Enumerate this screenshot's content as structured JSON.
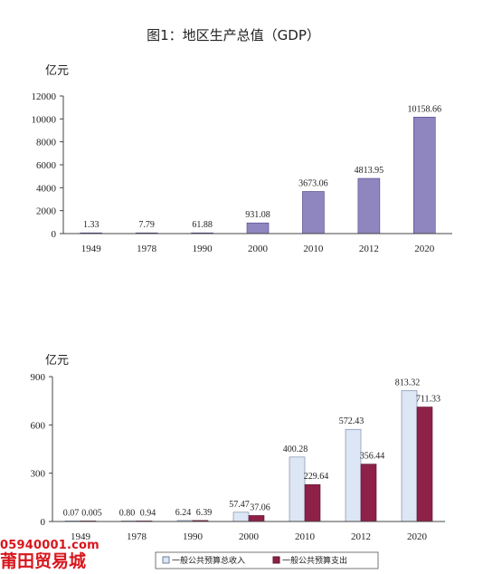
{
  "chart_data": [
    {
      "type": "bar",
      "title": "图1：地区生产总值（GDP）",
      "ylabel": "亿元",
      "categories": [
        "1949",
        "1978",
        "1990",
        "2000",
        "2010",
        "2012",
        "2020"
      ],
      "values": [
        1.33,
        7.79,
        61.88,
        931.08,
        3673.06,
        4813.95,
        10158.66
      ],
      "value_labels": [
        "1.33",
        "7.79",
        "61.88",
        "931.08",
        "3673.06",
        "4813.95",
        "10158.66"
      ],
      "yticks": [
        "0",
        "2000",
        "4000",
        "6000",
        "8000",
        "10000",
        "12000"
      ],
      "ylim": [
        0,
        12000
      ],
      "grid": false,
      "colors": {
        "bar": "#8f86c0",
        "bar_edge": "#4e4788"
      }
    },
    {
      "type": "bar",
      "ylabel": "亿元",
      "categories": [
        "1949",
        "1978",
        "1990",
        "2000",
        "2010",
        "2012",
        "2020"
      ],
      "series": [
        {
          "name": "一般公共预算总收入",
          "values": [
            0.07,
            0.8,
            6.24,
            57.47,
            400.28,
            572.43,
            813.32
          ],
          "value_labels": [
            "0.07",
            "0.80",
            "6.24",
            "57.47",
            "400.28",
            "572.43",
            "813.32"
          ],
          "color": "#dce6f4",
          "edge": "#6f7fa0"
        },
        {
          "name": "一般公共预算支出",
          "values": [
            0.005,
            0.94,
            6.39,
            37.06,
            229.64,
            356.44,
            711.33
          ],
          "value_labels": [
            "0.005",
            "0.94",
            "6.39",
            "37.06",
            "229.64",
            "356.44",
            "711.33"
          ],
          "color": "#8e2148",
          "edge": "#5e1430"
        }
      ],
      "yticks": [
        "0",
        "300",
        "600",
        "900"
      ],
      "ylim": [
        0,
        900
      ],
      "grid": false,
      "legend": "bottom-right"
    }
  ],
  "watermark": {
    "url": "05940001.com",
    "name": "莆田贸易城"
  }
}
